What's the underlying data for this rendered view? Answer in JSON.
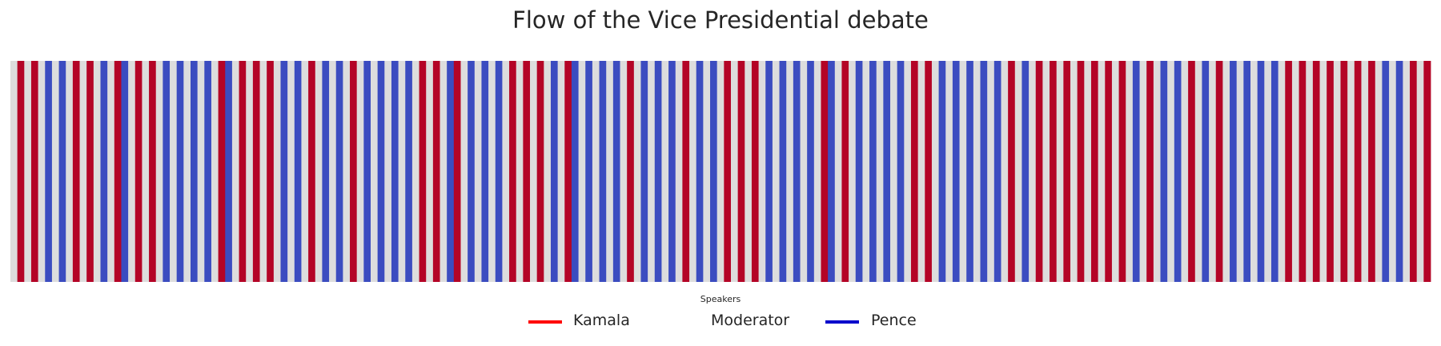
{
  "chart_data": {
    "type": "heatmap",
    "title": "Flow of the Vice Presidential debate",
    "legend_title": "Speakers",
    "legend_position": "bottom-center",
    "colors": {
      "Kamala": "#b40426",
      "Moderator": "#dddddd",
      "Pence": "#3b4cc0"
    },
    "legend_line_colors": {
      "Kamala": "#ff0000",
      "Moderator": "none",
      "Pence": "#0000cc"
    },
    "series": [
      {
        "name": "Kamala"
      },
      {
        "name": "Moderator"
      },
      {
        "name": "Pence"
      }
    ],
    "speaker_sequence": [
      "Moderator",
      "Kamala",
      "Moderator",
      "Kamala",
      "Moderator",
      "Pence",
      "Moderator",
      "Pence",
      "Moderator",
      "Kamala",
      "Moderator",
      "Kamala",
      "Moderator",
      "Pence",
      "Moderator",
      "Kamala",
      "Pence",
      "Moderator",
      "Kamala",
      "Moderator",
      "Kamala",
      "Moderator",
      "Pence",
      "Moderator",
      "Pence",
      "Moderator",
      "Pence",
      "Moderator",
      "Pence",
      "Moderator",
      "Kamala",
      "Pence",
      "Moderator",
      "Kamala",
      "Moderator",
      "Kamala",
      "Moderator",
      "Kamala",
      "Moderator",
      "Pence",
      "Moderator",
      "Pence",
      "Moderator",
      "Kamala",
      "Moderator",
      "Pence",
      "Moderator",
      "Pence",
      "Moderator",
      "Kamala",
      "Moderator",
      "Pence",
      "Moderator",
      "Pence",
      "Moderator",
      "Pence",
      "Moderator",
      "Pence",
      "Moderator",
      "Kamala",
      "Moderator",
      "Kamala",
      "Moderator",
      "Pence",
      "Kamala",
      "Moderator",
      "Pence",
      "Moderator",
      "Pence",
      "Moderator",
      "Pence",
      "Moderator",
      "Kamala",
      "Moderator",
      "Kamala",
      "Moderator",
      "Kamala",
      "Moderator",
      "Pence",
      "Moderator",
      "Kamala",
      "Pence",
      "Moderator",
      "Pence",
      "Moderator",
      "Pence",
      "Moderator",
      "Pence",
      "Moderator",
      "Kamala",
      "Moderator",
      "Pence",
      "Moderator",
      "Pence",
      "Moderator",
      "Pence",
      "Moderator",
      "Kamala",
      "Moderator",
      "Pence",
      "Moderator",
      "Pence",
      "Moderator",
      "Kamala",
      "Moderator",
      "Kamala",
      "Moderator",
      "Kamala",
      "Moderator",
      "Pence",
      "Moderator",
      "Pence",
      "Moderator",
      "Pence",
      "Moderator",
      "Pence",
      "Moderator",
      "Kamala",
      "Pence",
      "Moderator",
      "Kamala",
      "Moderator",
      "Pence",
      "Moderator",
      "Pence",
      "Moderator",
      "Pence",
      "Moderator",
      "Pence",
      "Moderator",
      "Kamala",
      "Moderator",
      "Kamala",
      "Moderator",
      "Pence",
      "Moderator",
      "Pence",
      "Moderator",
      "Pence",
      "Moderator",
      "Pence",
      "Moderator",
      "Pence",
      "Moderator",
      "Kamala",
      "Moderator",
      "Pence",
      "Moderator",
      "Kamala",
      "Moderator",
      "Kamala",
      "Moderator",
      "Kamala",
      "Moderator",
      "Kamala",
      "Moderator",
      "Kamala",
      "Moderator",
      "Kamala",
      "Moderator",
      "Kamala",
      "Moderator",
      "Pence",
      "Moderator",
      "Kamala",
      "Moderator",
      "Pence",
      "Moderator",
      "Pence",
      "Moderator",
      "Kamala",
      "Moderator",
      "Pence",
      "Moderator",
      "Kamala",
      "Moderator",
      "Pence",
      "Moderator",
      "Pence",
      "Moderator",
      "Pence",
      "Moderator",
      "Pence",
      "Moderator",
      "Kamala",
      "Moderator",
      "Kamala",
      "Moderator",
      "Kamala",
      "Moderator",
      "Kamala",
      "Moderator",
      "Kamala",
      "Moderator",
      "Kamala",
      "Moderator",
      "Kamala",
      "Moderator",
      "Pence",
      "Moderator",
      "Pence",
      "Moderator",
      "Kamala",
      "Moderator",
      "Kamala"
    ]
  }
}
